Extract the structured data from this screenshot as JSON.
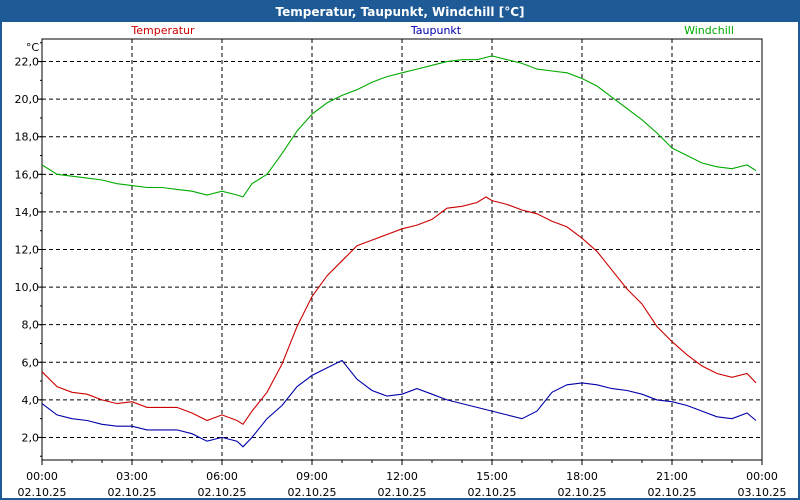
{
  "window": {
    "title": "Temperatur, Taupunkt, Windchill [°C]"
  },
  "chart_data": {
    "type": "line",
    "title": "Temperatur, Taupunkt, Windchill [°C]",
    "ylabel": "°C",
    "xlabel": "",
    "ylim": [
      0.8,
      23.2
    ],
    "xlim": [
      0,
      24
    ],
    "grid": true,
    "legend_placement": "top",
    "y_ticks": [
      "2,0",
      "4,0",
      "6,0",
      "8,0",
      "10,0",
      "12,0",
      "14,0",
      "16,0",
      "18,0",
      "20,0",
      "22,0"
    ],
    "x_ticks": [
      {
        "time": "00:00",
        "date": "02.10.25"
      },
      {
        "time": "03:00",
        "date": "02.10.25"
      },
      {
        "time": "06:00",
        "date": "02.10.25"
      },
      {
        "time": "09:00",
        "date": "02.10.25"
      },
      {
        "time": "12:00",
        "date": "02.10.25"
      },
      {
        "time": "15:00",
        "date": "02.10.25"
      },
      {
        "time": "18:00",
        "date": "02.10.25"
      },
      {
        "time": "21:00",
        "date": "02.10.25"
      },
      {
        "time": "00:00",
        "date": "03.10.25"
      }
    ],
    "series": [
      {
        "name": "Temperatur",
        "color": "#cc0000",
        "x": [
          0,
          0.5,
          1,
          1.5,
          2,
          2.5,
          3,
          3.5,
          4,
          4.5,
          5,
          5.5,
          6,
          6.5,
          6.7,
          7,
          7.5,
          8,
          8.5,
          9,
          9.5,
          10,
          10.5,
          11,
          11.5,
          12,
          12.5,
          13,
          13.5,
          14,
          14.5,
          14.8,
          15,
          15.5,
          16,
          16.5,
          17,
          17.5,
          18,
          18.5,
          19,
          19.5,
          20,
          20.5,
          21,
          21.5,
          22,
          22.5,
          23,
          23.5,
          23.8
        ],
        "values": [
          5.5,
          4.7,
          4.4,
          4.3,
          4.0,
          3.8,
          3.9,
          3.6,
          3.6,
          3.6,
          3.3,
          2.9,
          3.2,
          2.9,
          2.7,
          3.4,
          4.4,
          5.9,
          7.9,
          9.5,
          10.6,
          11.4,
          12.2,
          12.5,
          12.8,
          13.1,
          13.3,
          13.6,
          14.2,
          14.3,
          14.5,
          14.8,
          14.6,
          14.4,
          14.1,
          13.9,
          13.5,
          13.2,
          12.6,
          11.9,
          10.9,
          9.9,
          9.1,
          7.9,
          7.1,
          6.4,
          5.8,
          5.4,
          5.2,
          5.4,
          4.9
        ]
      },
      {
        "name": "Taupunkt",
        "color": "#0000aa",
        "x": [
          0,
          0.5,
          1,
          1.5,
          2,
          2.5,
          3,
          3.5,
          4,
          4.5,
          5,
          5.5,
          6,
          6.5,
          6.7,
          7,
          7.5,
          8,
          8.5,
          9,
          9.5,
          10,
          10.5,
          11,
          11.5,
          12,
          12.5,
          13,
          13.5,
          14,
          14.5,
          15,
          15.5,
          16,
          16.5,
          17,
          17.5,
          18,
          18.5,
          19,
          19.5,
          20,
          20.5,
          21,
          21.5,
          22,
          22.5,
          23,
          23.5,
          23.8
        ],
        "values": [
          3.8,
          3.2,
          3.0,
          2.9,
          2.7,
          2.6,
          2.6,
          2.4,
          2.4,
          2.4,
          2.2,
          1.8,
          2.0,
          1.8,
          1.5,
          2.0,
          3.0,
          3.7,
          4.7,
          5.3,
          5.7,
          6.1,
          5.1,
          4.5,
          4.2,
          4.3,
          4.6,
          4.3,
          4.0,
          3.8,
          3.6,
          3.4,
          3.2,
          3.0,
          3.4,
          4.4,
          4.8,
          4.9,
          4.8,
          4.6,
          4.5,
          4.3,
          4.0,
          3.9,
          3.7,
          3.4,
          3.1,
          3.0,
          3.3,
          2.9
        ]
      },
      {
        "name": "Windchill",
        "color": "#00aa00",
        "x": [
          0,
          0.5,
          1,
          1.5,
          2,
          2.5,
          3,
          3.5,
          4,
          4.5,
          5,
          5.5,
          6,
          6.5,
          6.7,
          7,
          7.5,
          8,
          8.5,
          9,
          9.5,
          10,
          10.5,
          11,
          11.5,
          12,
          12.5,
          13,
          13.5,
          14,
          14.5,
          15,
          15.5,
          16,
          16.5,
          17,
          17.5,
          18,
          18.5,
          19,
          19.5,
          20,
          20.5,
          21,
          21.5,
          22,
          22.5,
          23,
          23.5,
          23.8
        ],
        "values": [
          16.5,
          16.0,
          15.9,
          15.8,
          15.7,
          15.5,
          15.4,
          15.3,
          15.3,
          15.2,
          15.1,
          14.9,
          15.1,
          14.9,
          14.8,
          15.5,
          16.0,
          17.1,
          18.3,
          19.2,
          19.8,
          20.2,
          20.5,
          20.9,
          21.2,
          21.4,
          21.6,
          21.8,
          22.0,
          22.1,
          22.1,
          22.3,
          22.1,
          21.9,
          21.6,
          21.5,
          21.4,
          21.1,
          20.7,
          20.1,
          19.5,
          18.9,
          18.2,
          17.4,
          17.0,
          16.6,
          16.4,
          16.3,
          16.5,
          16.2
        ]
      }
    ]
  }
}
